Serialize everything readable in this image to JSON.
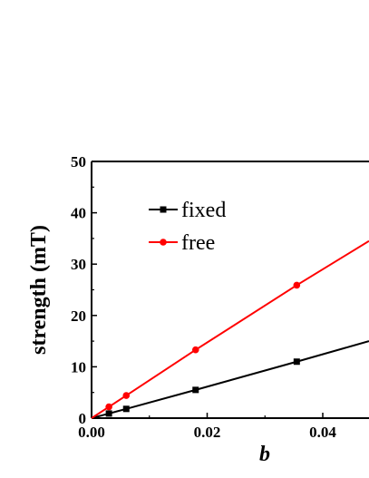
{
  "chart_data": {
    "type": "line",
    "xlabel": "b",
    "ylabel": "strength (mT)",
    "xlim": [
      0,
      0.048
    ],
    "ylim": [
      0,
      50
    ],
    "x_ticks": [
      {
        "value": 0.0,
        "label": "0.00"
      },
      {
        "value": 0.02,
        "label": "0.02"
      },
      {
        "value": 0.04,
        "label": "0.04"
      }
    ],
    "y_ticks": [
      {
        "value": 0,
        "label": "0"
      },
      {
        "value": 10,
        "label": "10"
      },
      {
        "value": 20,
        "label": "20"
      },
      {
        "value": 30,
        "label": "30"
      },
      {
        "value": 40,
        "label": "40"
      },
      {
        "value": 50,
        "label": "50"
      }
    ],
    "legend_position": "top-left",
    "series": [
      {
        "name": "fixed",
        "color": "#000000",
        "marker": "square",
        "x": [
          0,
          0.003,
          0.006,
          0.018,
          0.0355
        ],
        "y": [
          0,
          0.9,
          1.8,
          5.5,
          11.0
        ],
        "line_end": {
          "x": 0.048,
          "y": 15.0
        }
      },
      {
        "name": "free",
        "color": "#ff0000",
        "marker": "circle",
        "x": [
          0,
          0.003,
          0.006,
          0.018,
          0.0355
        ],
        "y": [
          0,
          2.2,
          4.4,
          13.3,
          25.9
        ],
        "line_end": {
          "x": 0.048,
          "y": 34.5
        }
      }
    ]
  }
}
